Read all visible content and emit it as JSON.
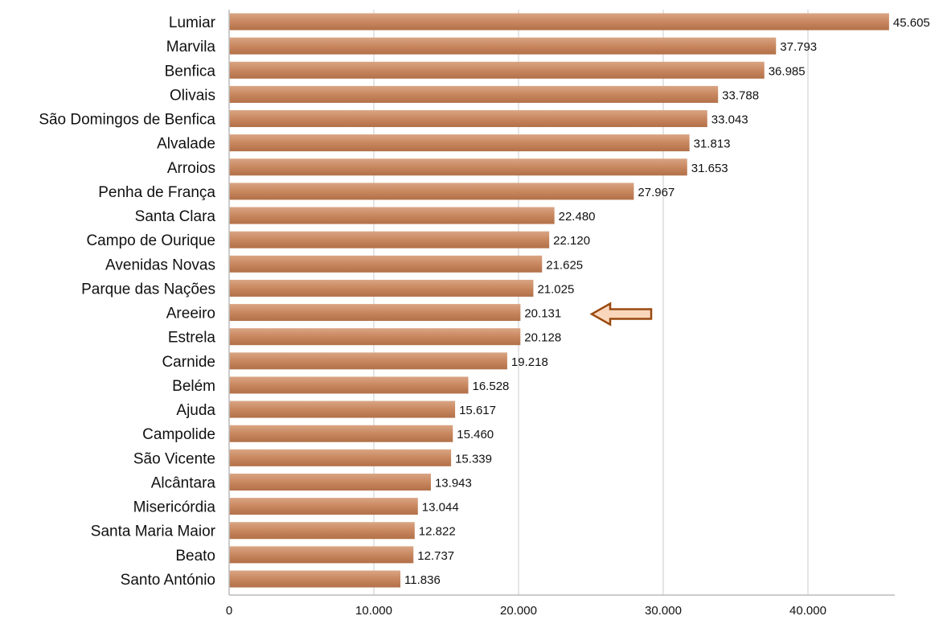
{
  "chart_data": {
    "type": "bar",
    "orientation": "horizontal",
    "title": "",
    "xlabel": "",
    "ylabel": "",
    "categories": [
      "Lumiar",
      "Marvila",
      "Benfica",
      "Olivais",
      "São Domingos de Benfica",
      "Alvalade",
      "Arroios",
      "Penha de França",
      "Santa Clara",
      "Campo de Ourique",
      "Avenidas Novas",
      "Parque das Nações",
      "Areeiro",
      "Estrela",
      "Carnide",
      "Belém",
      "Ajuda",
      "Campolide",
      "São Vicente",
      "Alcântara",
      "Misericórdia",
      "Santa Maria Maior",
      "Beato",
      "Santo António"
    ],
    "values": [
      45605,
      37793,
      36985,
      33788,
      33043,
      31813,
      31653,
      27967,
      22480,
      22120,
      21625,
      21025,
      20131,
      20128,
      19218,
      16528,
      15617,
      15460,
      15339,
      13943,
      13044,
      12822,
      12737,
      11836
    ],
    "value_labels": [
      "45.605",
      "37.793",
      "36.985",
      "33.788",
      "33.043",
      "31.813",
      "31.653",
      "27.967",
      "22.480",
      "22.120",
      "21.625",
      "21.025",
      "20.131",
      "20.128",
      "19.218",
      "16.528",
      "15.617",
      "15.460",
      "15.339",
      "13.943",
      "13.044",
      "12.822",
      "12.737",
      "11.836"
    ],
    "xlim": [
      0,
      46000
    ],
    "xticks": [
      0,
      10000,
      20000,
      30000,
      40000
    ],
    "xtick_labels": [
      "0",
      "10.000",
      "20.000",
      "30.000",
      "40.000"
    ],
    "grid": "vertical",
    "legend": "none",
    "colors": {
      "bar_fill": "#C8875F",
      "bar_top": "#DAA584",
      "bar_bottom": "#B27048",
      "gridline": "#D4D4D4",
      "axis": "#BBBBBB",
      "text": "#111111"
    },
    "annotation": {
      "type": "arrow",
      "points_to": "Areeiro",
      "direction": "left",
      "fill": "#FAD7BC",
      "stroke": "#9A4A10"
    }
  }
}
